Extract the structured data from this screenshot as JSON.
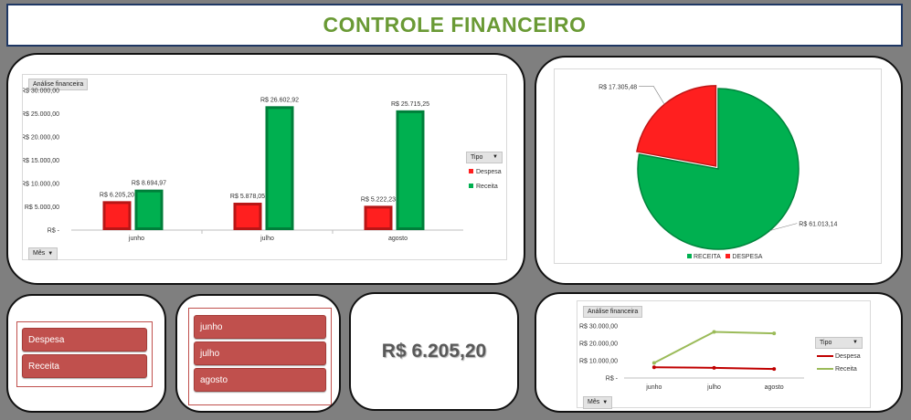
{
  "header": {
    "title": "CONTROLE FINANCEIRO"
  },
  "bar_panel": {
    "field_name": "Análise financeira",
    "axis_field": "Mês",
    "legend_title": "Tipo",
    "legend_items": [
      "Despesa",
      "Receita"
    ],
    "y_ticks": [
      "R$ 30.000,00",
      "R$ 25.000,00",
      "R$ 20.000,00",
      "R$ 15.000,00",
      "R$ 10.000,00",
      "R$ 5.000,00",
      "R$ -"
    ]
  },
  "pie_panel": {
    "legend_items": [
      "RECEITA",
      "DESPESA"
    ]
  },
  "tipo_slicer": {
    "items": [
      "Despesa",
      "Receita"
    ]
  },
  "mes_slicer": {
    "items": [
      "junho",
      "julho",
      "agosto"
    ]
  },
  "value_card": {
    "value": "R$ 6.205,20"
  },
  "line_panel": {
    "field_name": "Análise financeira",
    "axis_field": "Mês",
    "legend_title": "Tipo",
    "legend_items": [
      "Despesa",
      "Receita"
    ],
    "y_ticks": [
      "R$ 30.000,00",
      "R$ 20.000,00",
      "R$ 10.000,00",
      "R$ -"
    ]
  },
  "colors": {
    "despesa": "#ff1f1f",
    "receita": "#00b050",
    "line_despesa": "#c00000",
    "line_receita": "#9bbb59"
  },
  "chart_data": [
    {
      "type": "bar",
      "title": "Análise financeira",
      "categories": [
        "junho",
        "julho",
        "agosto"
      ],
      "series": [
        {
          "name": "Despesa",
          "values": [
            6205.2,
            5878.05,
            5222.23
          ],
          "labels": [
            "R$ 6.205,20",
            "R$ 5.878,05",
            "R$ 5.222,23"
          ]
        },
        {
          "name": "Receita",
          "values": [
            8694.97,
            26602.92,
            25715.25
          ],
          "labels": [
            "R$ 8.694,97",
            "R$ 26.602,92",
            "R$ 25.715,25"
          ]
        }
      ],
      "ylim": [
        0,
        30000
      ]
    },
    {
      "type": "pie",
      "slices": [
        {
          "name": "RECEITA",
          "value": 61013.14,
          "label": "R$ 61.013,14"
        },
        {
          "name": "DESPESA",
          "value": 17305.48,
          "label": "R$ 17.305,48"
        }
      ]
    },
    {
      "type": "line",
      "title": "Análise financeira",
      "categories": [
        "junho",
        "julho",
        "agosto"
      ],
      "series": [
        {
          "name": "Despesa",
          "values": [
            6205.2,
            5878.05,
            5222.23
          ]
        },
        {
          "name": "Receita",
          "values": [
            8694.97,
            26602.92,
            25715.25
          ]
        }
      ],
      "ylim": [
        0,
        30000
      ]
    }
  ]
}
